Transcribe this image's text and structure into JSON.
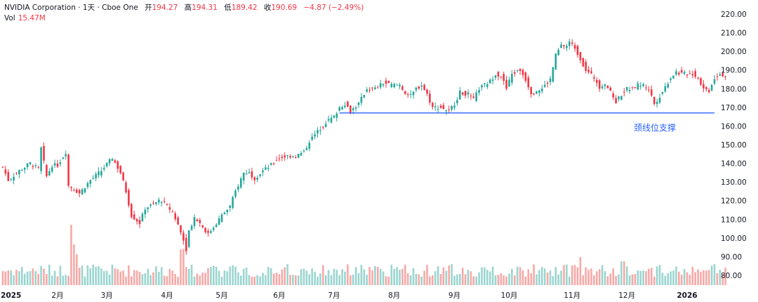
{
  "header": {
    "symbol": "NVIDIA Corporation",
    "interval": "1天",
    "exchange": "Cboe One",
    "open_label": "开",
    "open": "194.27",
    "high_label": "高",
    "high": "194.31",
    "low_label": "低",
    "low": "189.42",
    "close_label": "收",
    "close": "190.69",
    "change": "−4.87 (−2.49%)",
    "vol_label": "Vol",
    "vol_value": "15.47M"
  },
  "colors": {
    "up": "#26a69a",
    "down": "#f23645",
    "vol_up": "#9bd5cf",
    "vol_down": "#f7a9a7",
    "support_line": "#2962ff"
  },
  "chart_data": {
    "type": "candlestick",
    "title": "NVIDIA Corporation · 1天 · Cboe One",
    "ylim": [
      80,
      220
    ],
    "yticks": [
      "220.00",
      "210.00",
      "200.00",
      "190.00",
      "180.00",
      "170.00",
      "160.00",
      "150.00",
      "140.00",
      "130.00",
      "120.00",
      "110.00",
      "100.00",
      "90.00",
      "80.00"
    ],
    "xtick_labels": [
      {
        "label": "2025",
        "bold": true,
        "index": 3
      },
      {
        "label": "2月",
        "bold": false,
        "index": 20
      },
      {
        "label": "3月",
        "bold": false,
        "index": 38
      },
      {
        "label": "4月",
        "bold": false,
        "index": 60
      },
      {
        "label": "5月",
        "bold": false,
        "index": 80
      },
      {
        "label": "6月",
        "bold": false,
        "index": 101
      },
      {
        "label": "7月",
        "bold": false,
        "index": 121
      },
      {
        "label": "8月",
        "bold": false,
        "index": 143
      },
      {
        "label": "9月",
        "bold": false,
        "index": 165
      },
      {
        "label": "10月",
        "bold": false,
        "index": 185
      },
      {
        "label": "11月",
        "bold": false,
        "index": 208
      },
      {
        "label": "12月",
        "bold": false,
        "index": 228
      },
      {
        "label": "2026",
        "bold": true,
        "index": 250
      }
    ],
    "close_keypoints": [
      [
        0,
        138
      ],
      [
        2,
        131
      ],
      [
        6,
        136
      ],
      [
        10,
        140
      ],
      [
        13,
        137
      ],
      [
        14,
        148
      ],
      [
        16,
        133
      ],
      [
        18,
        139
      ],
      [
        20,
        139
      ],
      [
        23,
        146
      ],
      [
        24,
        128
      ],
      [
        28,
        124
      ],
      [
        32,
        131
      ],
      [
        36,
        136
      ],
      [
        40,
        143
      ],
      [
        43,
        135
      ],
      [
        45,
        125
      ],
      [
        47,
        112
      ],
      [
        50,
        108
      ],
      [
        52,
        116
      ],
      [
        55,
        118
      ],
      [
        57,
        120
      ],
      [
        58,
        120
      ],
      [
        60,
        117
      ],
      [
        62,
        114
      ],
      [
        64,
        107
      ],
      [
        66,
        99
      ],
      [
        67,
        94
      ],
      [
        68,
        104
      ],
      [
        70,
        111
      ],
      [
        72,
        108
      ],
      [
        75,
        102
      ],
      [
        77,
        106
      ],
      [
        80,
        112
      ],
      [
        83,
        117
      ],
      [
        85,
        125
      ],
      [
        88,
        135
      ],
      [
        90,
        135
      ],
      [
        92,
        132
      ],
      [
        95,
        136
      ],
      [
        98,
        139
      ],
      [
        101,
        143
      ],
      [
        104,
        144
      ],
      [
        107,
        144
      ],
      [
        110,
        146
      ],
      [
        112,
        152
      ],
      [
        115,
        157
      ],
      [
        118,
        162
      ],
      [
        121,
        165
      ],
      [
        123,
        170
      ],
      [
        125,
        172
      ],
      [
        127,
        168
      ],
      [
        130,
        172
      ],
      [
        133,
        180
      ],
      [
        136,
        180
      ],
      [
        139,
        183
      ],
      [
        142,
        182
      ],
      [
        145,
        182
      ],
      [
        147,
        178
      ],
      [
        149,
        176
      ],
      [
        151,
        180
      ],
      [
        153,
        182
      ],
      [
        155,
        177
      ],
      [
        157,
        170
      ],
      [
        160,
        170
      ],
      [
        163,
        168
      ],
      [
        165,
        172
      ],
      [
        167,
        178
      ],
      [
        170,
        177
      ],
      [
        172,
        174
      ],
      [
        174,
        180
      ],
      [
        176,
        182
      ],
      [
        178,
        184
      ],
      [
        180,
        188
      ],
      [
        182,
        187
      ],
      [
        184,
        180
      ],
      [
        186,
        188
      ],
      [
        189,
        190
      ],
      [
        191,
        185
      ],
      [
        193,
        178
      ],
      [
        195,
        179
      ],
      [
        197,
        180
      ],
      [
        200,
        185
      ],
      [
        202,
        198
      ],
      [
        204,
        203
      ],
      [
        206,
        203
      ],
      [
        207,
        205
      ],
      [
        209,
        202
      ],
      [
        211,
        196
      ],
      [
        213,
        190
      ],
      [
        216,
        186
      ],
      [
        218,
        181
      ],
      [
        220,
        183
      ],
      [
        222,
        178
      ],
      [
        224,
        173
      ],
      [
        226,
        177
      ],
      [
        228,
        180
      ],
      [
        230,
        180
      ],
      [
        232,
        182
      ],
      [
        234,
        182
      ],
      [
        236,
        180
      ],
      [
        238,
        172
      ],
      [
        240,
        176
      ],
      [
        242,
        181
      ],
      [
        244,
        186
      ],
      [
        246,
        189
      ],
      [
        248,
        188
      ],
      [
        250,
        188
      ],
      [
        252,
        188
      ],
      [
        254,
        186
      ],
      [
        256,
        180
      ],
      [
        258,
        179
      ],
      [
        260,
        186
      ],
      [
        262,
        188
      ],
      [
        264,
        187
      ]
    ],
    "support_line": {
      "y": 167,
      "from_index": 123,
      "to_index": 264,
      "label": "颈线位支撑"
    },
    "volume_panel": {
      "approx_bar_height_fraction": [
        0.25,
        0.55
      ]
    }
  }
}
